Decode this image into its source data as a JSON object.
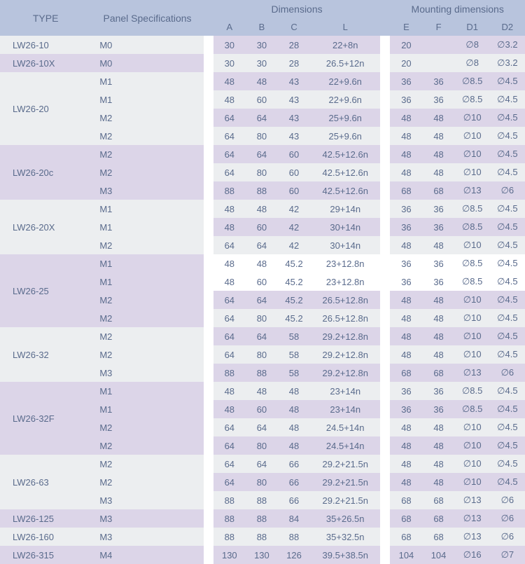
{
  "header": {
    "type": "TYPE",
    "panel": "Panel Specifications",
    "dimensions": "Dimensions",
    "mounting": "Mounting dimensions",
    "a": "A",
    "b": "B",
    "c": "C",
    "l": "L",
    "e": "E",
    "f": "F",
    "d1": "D1",
    "d2": "D2"
  },
  "colors": {
    "header_bg": "#b8c4dd",
    "row_purple": "#dcd5e8",
    "row_gray": "#eceef0",
    "row_white": "#ffffff",
    "text": "#5a6b8c"
  },
  "col_widths": {
    "type": 130,
    "panel": 160,
    "gap": 14,
    "a": 46,
    "b": 46,
    "c": 46,
    "l": 100,
    "e": 46,
    "f": 46,
    "d1": 50,
    "d2": 50
  },
  "groups": [
    {
      "type": "LW26-10",
      "type_bg": "#eceef0",
      "rows": [
        {
          "panel": "M0",
          "a": "30",
          "b": "30",
          "c": "28",
          "l": "22+8n",
          "e": "20",
          "f": "",
          "d1": "∅8",
          "d2": "∅3.2",
          "left": "#eceef0",
          "right": "#dcd5e8"
        }
      ]
    },
    {
      "type": "LW26-10X",
      "type_bg": "#dcd5e8",
      "rows": [
        {
          "panel": "M0",
          "a": "30",
          "b": "30",
          "c": "28",
          "l": "26.5+12n",
          "e": "20",
          "f": "",
          "d1": "∅8",
          "d2": "∅3.2",
          "left": "#dcd5e8",
          "right": "#eceef0"
        }
      ]
    },
    {
      "type": "LW26-20",
      "type_bg": "#eceef0",
      "rows": [
        {
          "panel": "M1",
          "a": "48",
          "b": "48",
          "c": "43",
          "l": "22+9.6n",
          "e": "36",
          "f": "36",
          "d1": "∅8.5",
          "d2": "∅4.5",
          "left": "#eceef0",
          "right": "#dcd5e8"
        },
        {
          "panel": "M1",
          "a": "48",
          "b": "60",
          "c": "43",
          "l": "22+9.6n",
          "e": "36",
          "f": "36",
          "d1": "∅8.5",
          "d2": "∅4.5",
          "left": "#eceef0",
          "right": "#eceef0"
        },
        {
          "panel": "M2",
          "a": "64",
          "b": "64",
          "c": "43",
          "l": "25+9.6n",
          "e": "48",
          "f": "48",
          "d1": "∅10",
          "d2": "∅4.5",
          "left": "#eceef0",
          "right": "#dcd5e8"
        },
        {
          "panel": "M2",
          "a": "64",
          "b": "80",
          "c": "43",
          "l": "25+9.6n",
          "e": "48",
          "f": "48",
          "d1": "∅10",
          "d2": "∅4.5",
          "left": "#eceef0",
          "right": "#eceef0"
        }
      ]
    },
    {
      "type": "LW26-20c",
      "type_bg": "#dcd5e8",
      "rows": [
        {
          "panel": "M2",
          "a": "64",
          "b": "64",
          "c": "60",
          "l": "42.5+12.6n",
          "e": "48",
          "f": "48",
          "d1": "∅10",
          "d2": "∅4.5",
          "left": "#dcd5e8",
          "right": "#dcd5e8"
        },
        {
          "panel": "M2",
          "a": "64",
          "b": "80",
          "c": "60",
          "l": "42.5+12.6n",
          "e": "48",
          "f": "48",
          "d1": "∅10",
          "d2": "∅4.5",
          "left": "#dcd5e8",
          "right": "#eceef0"
        },
        {
          "panel": "M3",
          "a": "88",
          "b": "88",
          "c": "60",
          "l": "42.5+12.6n",
          "e": "68",
          "f": "68",
          "d1": "∅13",
          "d2": "∅6",
          "left": "#dcd5e8",
          "right": "#dcd5e8"
        }
      ]
    },
    {
      "type": "LW26-20X",
      "type_bg": "#eceef0",
      "rows": [
        {
          "panel": "M1",
          "a": "48",
          "b": "48",
          "c": "42",
          "l": "29+14n",
          "e": "36",
          "f": "36",
          "d1": "∅8.5",
          "d2": "∅4.5",
          "left": "#eceef0",
          "right": "#eceef0"
        },
        {
          "panel": "M1",
          "a": "48",
          "b": "60",
          "c": "42",
          "l": "30+14n",
          "e": "36",
          "f": "36",
          "d1": "∅8.5",
          "d2": "∅4.5",
          "left": "#eceef0",
          "right": "#dcd5e8"
        },
        {
          "panel": "M2",
          "a": "64",
          "b": "64",
          "c": "42",
          "l": "30+14n",
          "e": "48",
          "f": "48",
          "d1": "∅10",
          "d2": "∅4.5",
          "left": "#eceef0",
          "right": "#eceef0"
        }
      ]
    },
    {
      "type": "LW26-25",
      "type_bg": "#dcd5e8",
      "gap_right": true,
      "rows": [
        {
          "panel": "M1",
          "a": "48",
          "b": "48",
          "c": "45.2",
          "l": "23+12.8n",
          "e": "36",
          "f": "36",
          "d1": "∅8.5",
          "d2": "∅4.5",
          "left": "#dcd5e8",
          "right": "#ffffff"
        },
        {
          "panel": "M1",
          "a": "48",
          "b": "60",
          "c": "45.2",
          "l": "23+12.8n",
          "e": "36",
          "f": "36",
          "d1": "∅8.5",
          "d2": "∅4.5",
          "left": "#dcd5e8",
          "right": "#ffffff"
        },
        {
          "panel": "M2",
          "a": "64",
          "b": "64",
          "c": "45.2",
          "l": "26.5+12.8n",
          "e": "48",
          "f": "48",
          "d1": "∅10",
          "d2": "∅4.5",
          "left": "#dcd5e8",
          "right": "#dcd5e8"
        },
        {
          "panel": "M2",
          "a": "64",
          "b": "80",
          "c": "45.2",
          "l": "26.5+12.8n",
          "e": "48",
          "f": "48",
          "d1": "∅10",
          "d2": "∅4.5",
          "left": "#dcd5e8",
          "right": "#eceef0"
        }
      ]
    },
    {
      "type": "LW26-32",
      "type_bg": "#eceef0",
      "rows": [
        {
          "panel": "M2",
          "a": "64",
          "b": "64",
          "c": "58",
          "l": "29.2+12.8n",
          "e": "48",
          "f": "48",
          "d1": "∅10",
          "d2": "∅4.5",
          "left": "#eceef0",
          "right": "#dcd5e8"
        },
        {
          "panel": "M2",
          "a": "64",
          "b": "80",
          "c": "58",
          "l": "29.2+12.8n",
          "e": "48",
          "f": "48",
          "d1": "∅10",
          "d2": "∅4.5",
          "left": "#eceef0",
          "right": "#eceef0"
        },
        {
          "panel": "M3",
          "a": "88",
          "b": "88",
          "c": "58",
          "l": "29.2+12.8n",
          "e": "68",
          "f": "68",
          "d1": "∅13",
          "d2": "∅6",
          "left": "#eceef0",
          "right": "#dcd5e8"
        }
      ]
    },
    {
      "type": "LW26-32F",
      "type_bg": "#dcd5e8",
      "rows": [
        {
          "panel": "M1",
          "a": "48",
          "b": "48",
          "c": "48",
          "l": "23+14n",
          "e": "36",
          "f": "36",
          "d1": "∅8.5",
          "d2": "∅4.5",
          "left": "#dcd5e8",
          "right": "#eceef0"
        },
        {
          "panel": "M1",
          "a": "48",
          "b": "60",
          "c": "48",
          "l": "23+14n",
          "e": "36",
          "f": "36",
          "d1": "∅8.5",
          "d2": "∅4.5",
          "left": "#dcd5e8",
          "right": "#dcd5e8"
        },
        {
          "panel": "M2",
          "a": "64",
          "b": "64",
          "c": "48",
          "l": "24.5+14n",
          "e": "48",
          "f": "48",
          "d1": "∅10",
          "d2": "∅4.5",
          "left": "#dcd5e8",
          "right": "#eceef0"
        },
        {
          "panel": "M2",
          "a": "64",
          "b": "80",
          "c": "48",
          "l": "24.5+14n",
          "e": "48",
          "f": "48",
          "d1": "∅10",
          "d2": "∅4.5",
          "left": "#dcd5e8",
          "right": "#dcd5e8"
        }
      ]
    },
    {
      "type": "LW26-63",
      "type_bg": "#eceef0",
      "rows": [
        {
          "panel": "M2",
          "a": "64",
          "b": "64",
          "c": "66",
          "l": "29.2+21.5n",
          "e": "48",
          "f": "48",
          "d1": "∅10",
          "d2": "∅4.5",
          "left": "#eceef0",
          "right": "#eceef0"
        },
        {
          "panel": "M2",
          "a": "64",
          "b": "80",
          "c": "66",
          "l": "29.2+21.5n",
          "e": "48",
          "f": "48",
          "d1": "∅10",
          "d2": "∅4.5",
          "left": "#eceef0",
          "right": "#dcd5e8"
        },
        {
          "panel": "M3",
          "a": "88",
          "b": "88",
          "c": "66",
          "l": "29.2+21.5n",
          "e": "68",
          "f": "68",
          "d1": "∅13",
          "d2": "∅6",
          "left": "#eceef0",
          "right": "#eceef0"
        }
      ]
    },
    {
      "type": "LW26-125",
      "type_bg": "#dcd5e8",
      "rows": [
        {
          "panel": "M3",
          "a": "88",
          "b": "88",
          "c": "84",
          "l": "35+26.5n",
          "e": "68",
          "f": "68",
          "d1": "∅13",
          "d2": "∅6",
          "left": "#dcd5e8",
          "right": "#dcd5e8"
        }
      ]
    },
    {
      "type": "LW26-160",
      "type_bg": "#eceef0",
      "rows": [
        {
          "panel": "M3",
          "a": "88",
          "b": "88",
          "c": "88",
          "l": "35+32.5n",
          "e": "68",
          "f": "68",
          "d1": "∅13",
          "d2": "∅6",
          "left": "#eceef0",
          "right": "#eceef0"
        }
      ]
    },
    {
      "type": "LW26-315",
      "type_bg": "#dcd5e8",
      "rows": [
        {
          "panel": "M4",
          "a": "130",
          "b": "130",
          "c": "126",
          "l": "39.5+38.5n",
          "e": "104",
          "f": "104",
          "d1": "∅16",
          "d2": "∅7",
          "left": "#dcd5e8",
          "right": "#dcd5e8"
        }
      ]
    }
  ]
}
